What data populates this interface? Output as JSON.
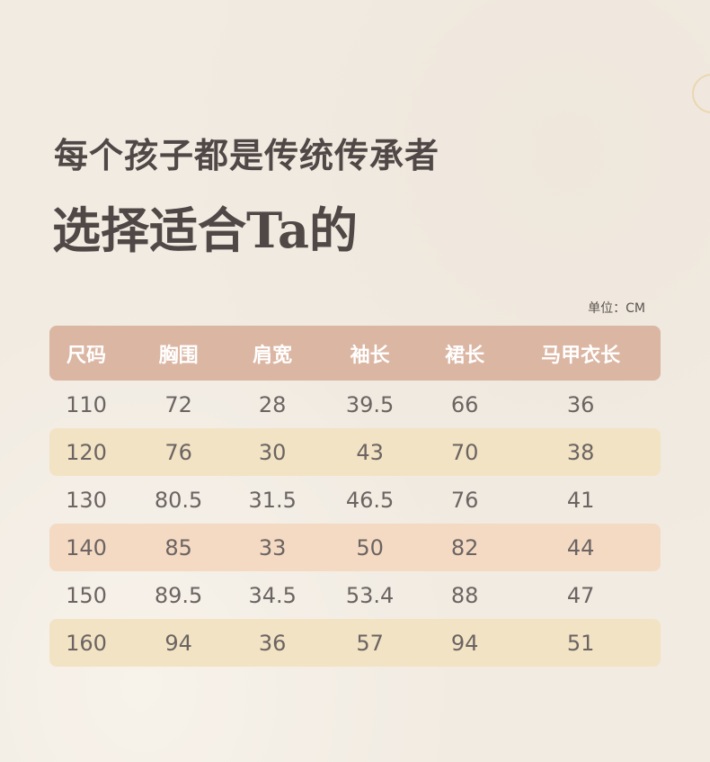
{
  "title_line1": "每个孩子都是传统传承者",
  "title_line2": "选择适合Ta的",
  "unit": "单位：CM",
  "headers": [
    "尺码",
    "胸围",
    "肩宽",
    "袖长",
    "裙长",
    "马甲衣长"
  ],
  "rows": [
    [
      "110",
      "72",
      "28",
      "39.5",
      "66",
      "36"
    ],
    [
      "120",
      "76",
      "30",
      "43",
      "70",
      "38"
    ],
    [
      "130",
      "80.5",
      "31.5",
      "46.5",
      "76",
      "41"
    ],
    [
      "140",
      "85",
      "33",
      "50",
      "82",
      "44"
    ],
    [
      "150",
      "89.5",
      "34.5",
      "53.4",
      "88",
      "47"
    ],
    [
      "160",
      "94",
      "36",
      "57",
      "94",
      "51"
    ]
  ],
  "colors": {
    "header": "#dbb6a3",
    "row_yellow": "#f2e3c4",
    "row_peach": "#f4dac3",
    "background": "#f1ebe2"
  }
}
